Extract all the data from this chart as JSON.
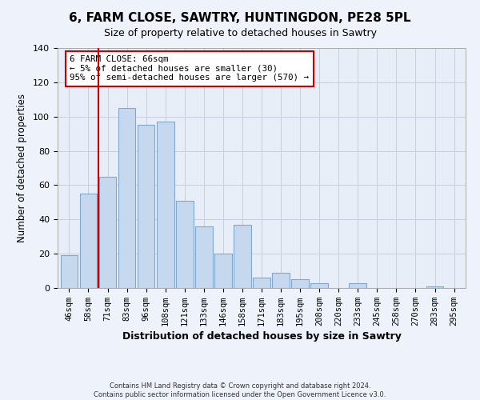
{
  "title": "6, FARM CLOSE, SAWTRY, HUNTINGDON, PE28 5PL",
  "subtitle": "Size of property relative to detached houses in Sawtry",
  "xlabel": "Distribution of detached houses by size in Sawtry",
  "ylabel": "Number of detached properties",
  "bar_color": "#c5d8ee",
  "bar_edge_color": "#7fa8cc",
  "categories": [
    "46sqm",
    "58sqm",
    "71sqm",
    "83sqm",
    "96sqm",
    "108sqm",
    "121sqm",
    "133sqm",
    "146sqm",
    "158sqm",
    "171sqm",
    "183sqm",
    "195sqm",
    "208sqm",
    "220sqm",
    "233sqm",
    "245sqm",
    "258sqm",
    "270sqm",
    "283sqm",
    "295sqm"
  ],
  "values": [
    19,
    55,
    65,
    105,
    95,
    97,
    51,
    36,
    20,
    37,
    6,
    9,
    5,
    3,
    0,
    3,
    0,
    0,
    0,
    1,
    0
  ],
  "ylim": [
    0,
    140
  ],
  "yticks": [
    0,
    20,
    40,
    60,
    80,
    100,
    120,
    140
  ],
  "vline_color": "#cc0000",
  "annotation_title": "6 FARM CLOSE: 66sqm",
  "annotation_line1": "← 5% of detached houses are smaller (30)",
  "annotation_line2": "95% of semi-detached houses are larger (570) →",
  "footer1": "Contains HM Land Registry data © Crown copyright and database right 2024.",
  "footer2": "Contains public sector information licensed under the Open Government Licence v3.0.",
  "background_color": "#eef2fa",
  "plot_bg_color": "#e8eef8",
  "grid_color": "#c8d0e0"
}
